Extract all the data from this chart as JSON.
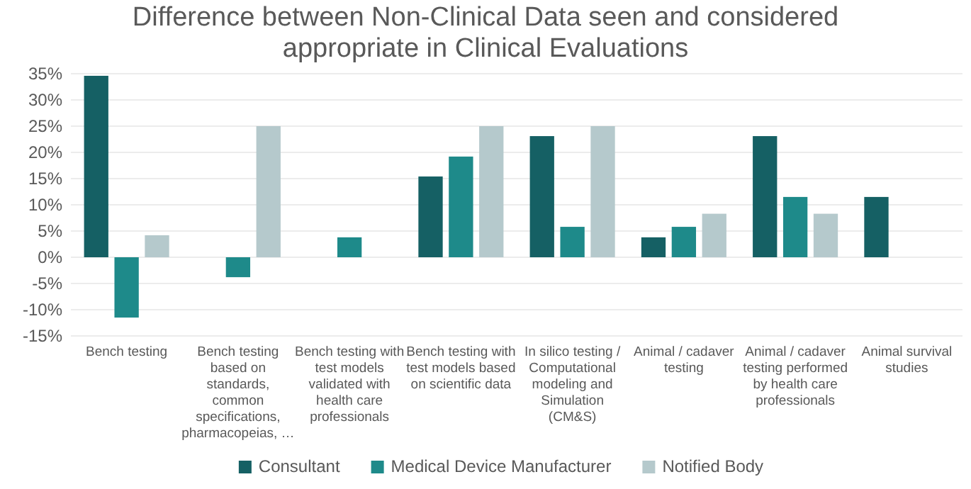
{
  "chart_data": {
    "type": "bar",
    "title": "Difference between Non-Clinical Data seen and considered appropriate in Clinical Evaluations",
    "categories": [
      "Bench testing",
      "Bench testing based on standards, common specifications, pharmacopeias, …",
      "Bench testing with test models validated with health care professionals",
      "Bench testing with test models based on scientific data",
      "In silico testing / Computational modeling and Simulation (CM&S)",
      "Animal / cadaver testing",
      "Animal / cadaver testing performed by health care professionals",
      "Animal survival studies"
    ],
    "series": [
      {
        "name": "Consultant",
        "color": "#156064",
        "values": [
          34.6,
          null,
          null,
          15.4,
          23.1,
          3.8,
          23.1,
          11.5
        ]
      },
      {
        "name": "Medical Device Manufacturer",
        "color": "#1e8a8a",
        "values": [
          -11.5,
          -3.8,
          3.8,
          19.2,
          5.8,
          5.8,
          11.5,
          null
        ]
      },
      {
        "name": "Notified Body",
        "color": "#b5c9cc",
        "values": [
          4.2,
          25,
          null,
          25,
          25,
          8.3,
          8.3,
          null
        ]
      }
    ],
    "ylim": [
      -15,
      35
    ],
    "yticks": [
      {
        "value": -15,
        "label": "-15%"
      },
      {
        "value": -10,
        "label": "-10%"
      },
      {
        "value": -5,
        "label": "-5%"
      },
      {
        "value": 0,
        "label": "0%"
      },
      {
        "value": 5,
        "label": "5%"
      },
      {
        "value": 10,
        "label": "10%"
      },
      {
        "value": 15,
        "label": "15%"
      },
      {
        "value": 20,
        "label": "20%"
      },
      {
        "value": 25,
        "label": "25%"
      },
      {
        "value": 30,
        "label": "30%"
      },
      {
        "value": 35,
        "label": "35%"
      }
    ],
    "grid": "y",
    "legend": "bottom"
  }
}
